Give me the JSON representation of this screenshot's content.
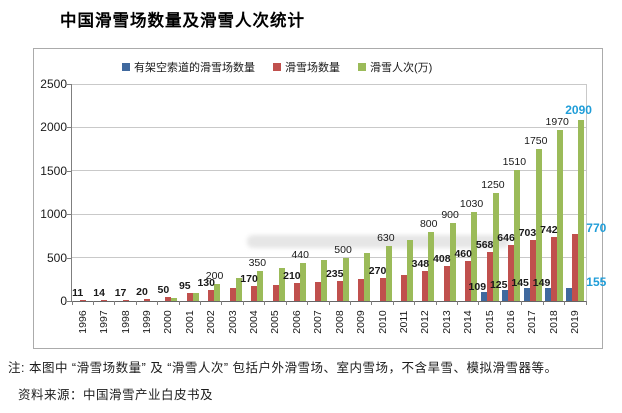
{
  "title": "中国滑雪场数量及滑雪人次统计",
  "note": "注: 本图中 “滑雪场数量” 及 “滑雪人次” 包括户外滑雪场、室内雪场，不含旱雪、模拟滑雪器等。",
  "source": "资料来源：中国滑雪产业白皮书及",
  "chart_data": {
    "type": "bar",
    "title": "中国滑雪场数量及滑雪人次统计",
    "categories": [
      "1996",
      "1997",
      "1998",
      "1999",
      "2000",
      "2001",
      "2002",
      "2003",
      "2004",
      "2005",
      "2006",
      "2007",
      "2008",
      "2009",
      "2010",
      "2011",
      "2012",
      "2013",
      "2014",
      "2015",
      "2016",
      "2017",
      "2018",
      "2019"
    ],
    "ylim": [
      0,
      2500
    ],
    "yticks": [
      0,
      500,
      1000,
      1500,
      2000,
      2500
    ],
    "grid": true,
    "legend_position": "top",
    "highlight_last_category": true,
    "highlight_color": "#1f9dd8",
    "series": [
      {
        "name": "有架空索道的滑雪场数量",
        "color": "#40699e",
        "label_weight": "bold",
        "values": [
          null,
          null,
          null,
          null,
          null,
          null,
          null,
          null,
          null,
          null,
          null,
          null,
          null,
          null,
          null,
          null,
          null,
          null,
          null,
          109,
          125,
          145,
          149,
          155
        ],
        "labels": [
          "",
          "",
          "",
          "",
          "",
          "",
          "",
          "",
          "",
          "",
          "",
          "",
          "",
          "",
          "",
          "",
          "",
          "",
          "",
          "109",
          "125",
          "145",
          "149",
          "155"
        ]
      },
      {
        "name": "滑雪场数量",
        "color": "#c0504d",
        "label_weight": "bold",
        "values": [
          11,
          14,
          17,
          20,
          50,
          95,
          130,
          150,
          170,
          185,
          210,
          220,
          235,
          250,
          270,
          305,
          348,
          408,
          460,
          568,
          646,
          703,
          742,
          770
        ],
        "labels": [
          "11",
          "14",
          "17",
          "20",
          "50",
          "95",
          "130",
          "",
          "170",
          "",
          "210",
          "",
          "235",
          "",
          "270",
          "",
          "348",
          "408",
          "460",
          "568",
          "646",
          "703",
          "742",
          "770"
        ]
      },
      {
        "name": "滑雪人次(万)",
        "color": "#9bbb59",
        "label_weight": "normal",
        "values": [
          null,
          null,
          null,
          null,
          30,
          90,
          200,
          270,
          350,
          385,
          440,
          470,
          500,
          555,
          630,
          700,
          800,
          900,
          1030,
          1250,
          1510,
          1750,
          1970,
          2090
        ],
        "labels": [
          "",
          "",
          "",
          "",
          "",
          "",
          "200",
          "",
          "350",
          "",
          "440",
          "",
          "500",
          "",
          "630",
          "",
          "800",
          "900",
          "1030",
          "1250",
          "1510",
          "1750",
          "1970",
          "2090"
        ]
      }
    ]
  }
}
